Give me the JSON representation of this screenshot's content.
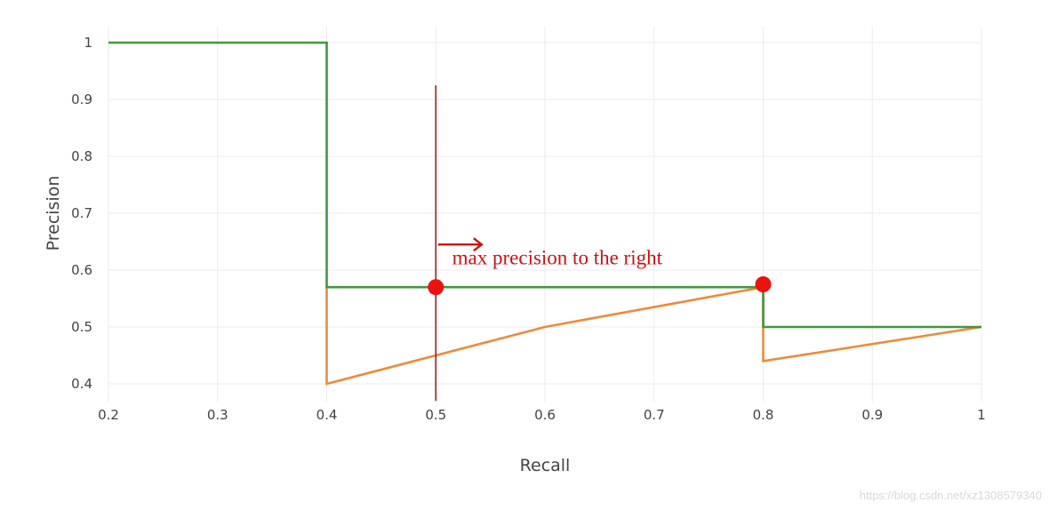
{
  "chart_data": {
    "type": "line",
    "xlabel": "Recall",
    "ylabel": "Precision",
    "xlim": [
      0.2,
      1.0
    ],
    "ylim": [
      0.4,
      1.0
    ],
    "x_ticks": [
      {
        "value": 0.2,
        "label": "0.2"
      },
      {
        "value": 0.3,
        "label": "0.3"
      },
      {
        "value": 0.4,
        "label": "0.4"
      },
      {
        "value": 0.5,
        "label": "0.5"
      },
      {
        "value": 0.6,
        "label": "0.6"
      },
      {
        "value": 0.7,
        "label": "0.7"
      },
      {
        "value": 0.8,
        "label": "0.8"
      },
      {
        "value": 0.9,
        "label": "0.9"
      },
      {
        "value": 1.0,
        "label": "1"
      }
    ],
    "y_ticks": [
      {
        "value": 0.4,
        "label": "0.4"
      },
      {
        "value": 0.5,
        "label": "0.5"
      },
      {
        "value": 0.6,
        "label": "0.6"
      },
      {
        "value": 0.7,
        "label": "0.7"
      },
      {
        "value": 0.8,
        "label": "0.8"
      },
      {
        "value": 0.9,
        "label": "0.9"
      },
      {
        "value": 1.0,
        "label": "1"
      }
    ],
    "grid": true,
    "series": [
      {
        "color": "#ee8a3c",
        "x": [
          0.4,
          0.4,
          0.6,
          0.8,
          0.8,
          1.0
        ],
        "y": [
          0.57,
          0.4,
          0.5,
          0.57,
          0.44,
          0.5
        ]
      },
      {
        "color": "#3c9a3c",
        "x": [
          0.2,
          0.4,
          0.4,
          0.8,
          0.8,
          1.0
        ],
        "y": [
          1.0,
          1.0,
          0.57,
          0.57,
          0.5,
          0.5
        ]
      }
    ],
    "annotations": {
      "vline": {
        "x": 0.5,
        "y_top": 0.925,
        "y_bottom": 0.37,
        "color": "#a02020"
      },
      "points": [
        {
          "x": 0.5,
          "y": 0.57,
          "color": "#ee1111"
        },
        {
          "x": 0.8,
          "y": 0.575,
          "color": "#ee1111"
        }
      ],
      "arrow": {
        "x_from": 0.502,
        "x_to": 0.542,
        "y": 0.645,
        "color": "#cc1111"
      },
      "text": {
        "label": "max precision to the right",
        "x": 0.515,
        "y": 0.61,
        "color": "#cc1111"
      }
    }
  },
  "watermark": "https://blog.csdn.net/xz1308579340"
}
